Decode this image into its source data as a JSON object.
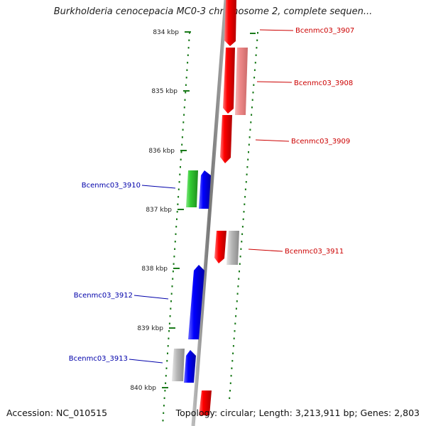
{
  "title": "Burkholderia cenocepacia MC0-3 chromosome 2, complete sequen...",
  "footer": {
    "accession": "Accession: NC_010515",
    "topology": "Topology: circular; Length: 3,213,911 bp; Genes: 2,803"
  },
  "ticks": [
    "834 kbp",
    "835 kbp",
    "836 kbp",
    "837 kbp",
    "838 kbp",
    "839 kbp",
    "840 kbp"
  ],
  "genes": [
    {
      "label": "Bcenmc03_3907",
      "side": "right",
      "color": "#cc0000"
    },
    {
      "label": "Bcenmc03_3908",
      "side": "right",
      "color": "#cc0000"
    },
    {
      "label": "Bcenmc03_3909",
      "side": "right",
      "color": "#cc0000"
    },
    {
      "label": "Bcenmc03_3910",
      "side": "left",
      "color": "#0000aa"
    },
    {
      "label": "Bcenmc03_3911",
      "side": "right",
      "color": "#cc0000"
    },
    {
      "label": "Bcenmc03_3912",
      "side": "left",
      "color": "#0000aa"
    },
    {
      "label": "Bcenmc03_3913",
      "side": "left",
      "color": "#0000aa"
    }
  ],
  "colors": {
    "forward": "#ee0000",
    "forward_light": "#f08a8a",
    "reverse": "#0000ee",
    "green": "#33cc33",
    "gray": "#b0b0b0",
    "backbone": "#888888",
    "ticks": "#1a7a1a"
  }
}
